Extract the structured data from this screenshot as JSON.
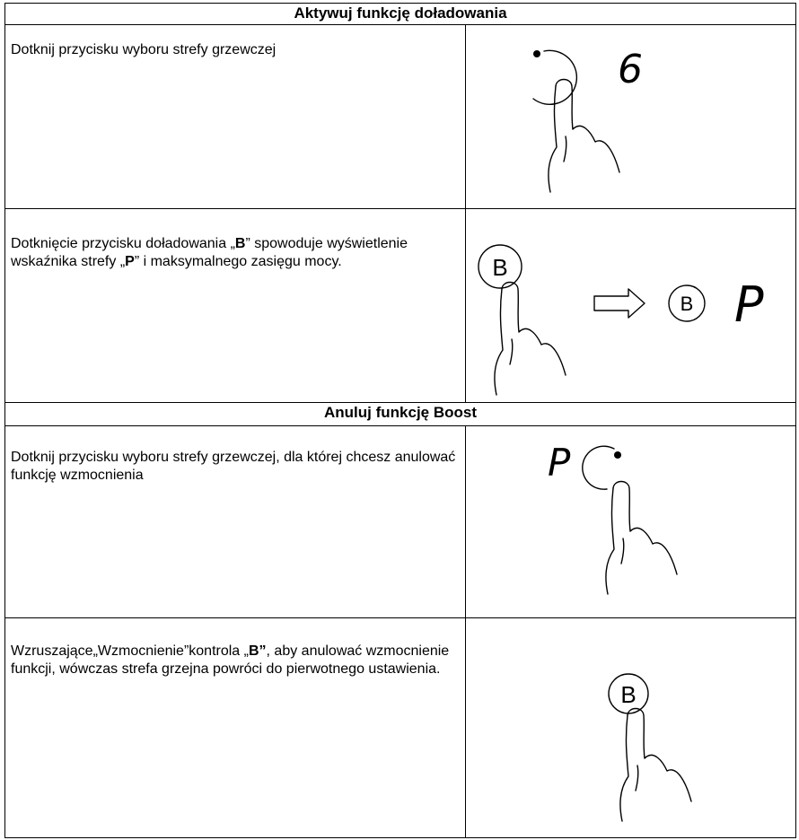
{
  "sections": [
    {
      "title": "Aktywuj funkcję doładowania",
      "rows": [
        {
          "text": [
            "Dotknij przycisku wyboru strefy grzewczej"
          ],
          "figure": [
            "6"
          ]
        },
        {
          "text": [
            "Dotknięcie przycisku doładowania „",
            "B",
            "” spowoduje wyświetlenie wskaźnika strefy „",
            "P",
            "” i maksymalnego zasięgu mocy."
          ],
          "figure": [
            "B",
            "B",
            "P"
          ]
        }
      ]
    },
    {
      "title": "Anuluj funkcję Boost",
      "rows": [
        {
          "text": [
            "Dotknij przycisku wyboru strefy grzewczej, dla której chcesz anulować funkcję wzmocnienia"
          ],
          "figure": [
            "P"
          ]
        },
        {
          "text": [
            "Wzruszające„Wzmocnienie”kontrola „",
            "B”",
            ", aby anulować wzmocnienie funkcji, wówczas strefa grzejna powróci do pierwotnego ustawienia."
          ],
          "figure": [
            "B"
          ]
        }
      ]
    }
  ]
}
